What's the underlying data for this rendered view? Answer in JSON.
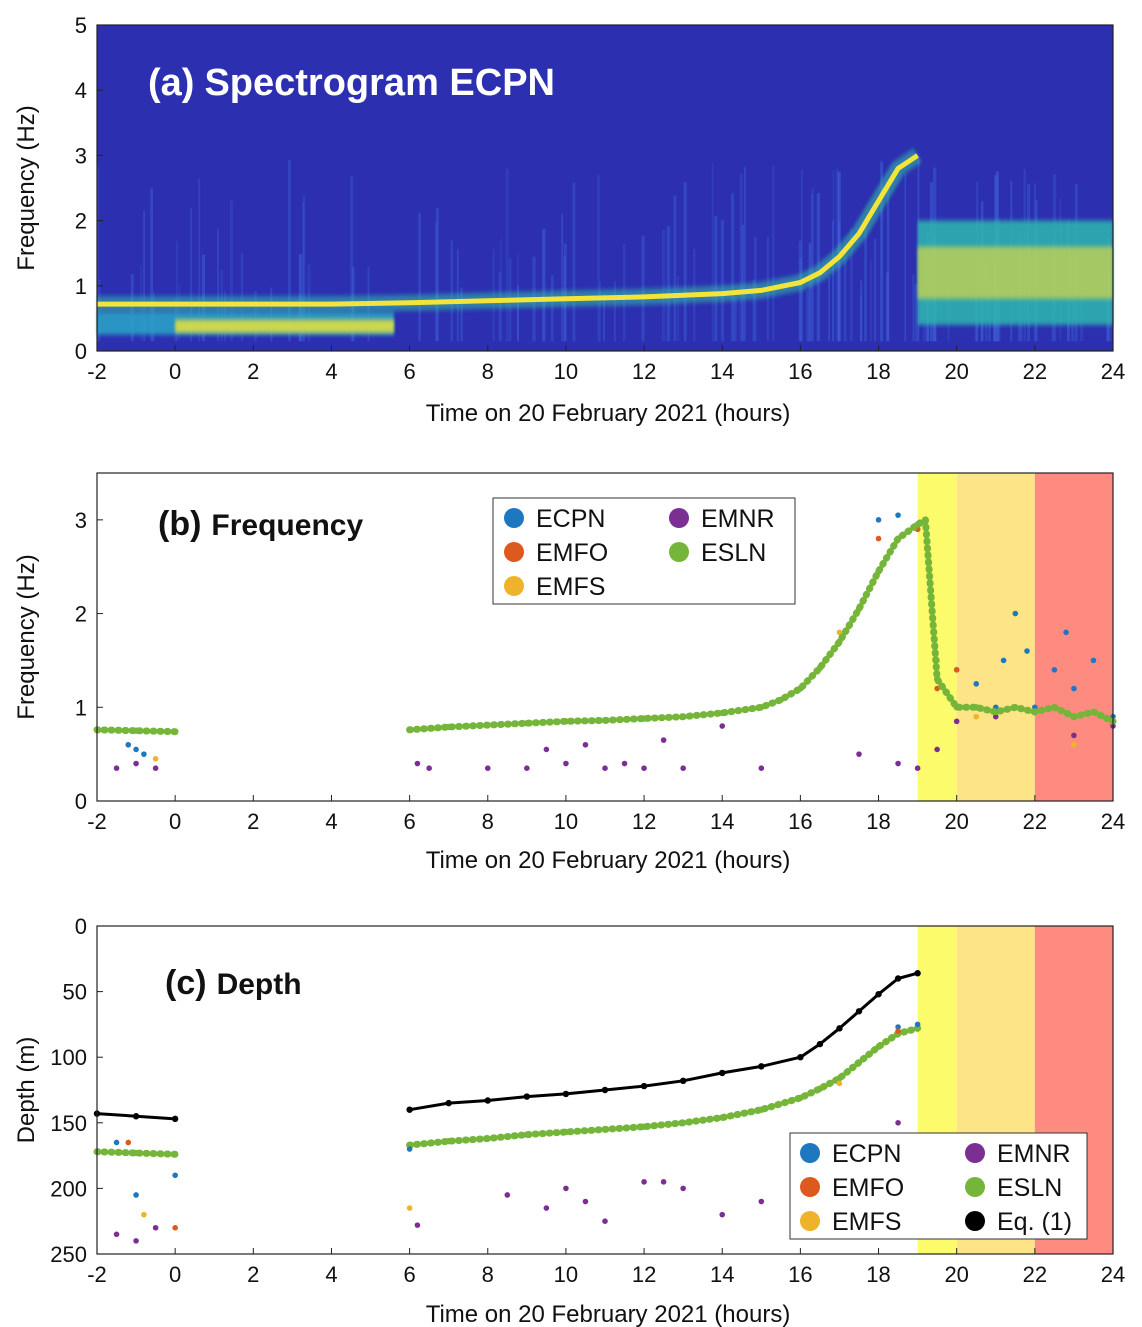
{
  "figure": {
    "time_ticks": [
      "-2",
      "0",
      "2",
      "4",
      "6",
      "8",
      "10",
      "12",
      "14",
      "16",
      "18",
      "20",
      "22",
      "24"
    ],
    "shading": [
      {
        "x0": 19,
        "x1": 20,
        "color": "#fbfb6b"
      },
      {
        "x0": 20,
        "x1": 22,
        "color": "#fde486"
      },
      {
        "x0": 22,
        "x1": 24,
        "color": "#fd8b80"
      }
    ],
    "station_colors": {
      "ECPN": "#1f77c0",
      "EMFO": "#dd5a1e",
      "EMFS": "#efb32b",
      "EMNR": "#7b2f93",
      "ESLN": "#74b53a",
      "Eq. (1)": "#000000"
    }
  },
  "chart_data": [
    {
      "type": "heatmap",
      "panel_tag": "(a)",
      "panel_title": "Spectrogram ECPN",
      "xlabel": "Time on 20 February 2021 (hours)",
      "ylabel": "Frequency (Hz)",
      "xlim": [
        -2,
        24
      ],
      "ylim": [
        0,
        5
      ],
      "yticks": [
        "0",
        "1",
        "2",
        "3",
        "4",
        "5"
      ],
      "colormap": "parula",
      "background_color": "#2b2fb0",
      "dominant_frequency_track": {
        "x": [
          -2,
          0,
          2,
          4,
          6,
          8,
          10,
          12,
          14,
          15,
          16,
          16.5,
          17,
          17.5,
          18,
          18.5,
          19
        ],
        "y": [
          0.72,
          0.72,
          0.72,
          0.72,
          0.74,
          0.77,
          0.8,
          0.83,
          0.88,
          0.93,
          1.05,
          1.2,
          1.45,
          1.8,
          2.3,
          2.8,
          3.0
        ]
      },
      "low_band": {
        "x": [
          -2,
          5.6
        ],
        "y": [
          0.25,
          0.6
        ]
      },
      "post_19h_band": {
        "x": [
          19,
          24
        ],
        "y": [
          0.4,
          2.0
        ]
      }
    },
    {
      "type": "scatter",
      "panel_tag": "(b)",
      "panel_title": "Frequency",
      "xlabel": "Time on 20 February 2021 (hours)",
      "ylabel": "Frequency (Hz)",
      "xlim": [
        -2,
        24
      ],
      "ylim": [
        0,
        3.5
      ],
      "yticks": [
        "0",
        "1",
        "2",
        "3"
      ],
      "legend": {
        "position": "top-center",
        "entries": [
          "ECPN",
          "EMNR",
          "EMFO",
          "ESLN",
          "EMFS"
        ]
      },
      "series": [
        {
          "name": "ECPN",
          "color": "#1f77c0",
          "x": [
            -1.2,
            -1.0,
            -0.8,
            18.0,
            18.5,
            19.0,
            19.5,
            20.0,
            20.5,
            21.0,
            21.2,
            21.5,
            21.8,
            22.0,
            22.5,
            22.8,
            23.0,
            23.5,
            24.0
          ],
          "y": [
            0.6,
            0.55,
            0.5,
            3.0,
            3.05,
            2.9,
            1.3,
            1.4,
            1.25,
            1.0,
            1.5,
            2.0,
            1.6,
            1.0,
            1.4,
            1.8,
            1.2,
            1.5,
            0.9
          ]
        },
        {
          "name": "EMFO",
          "color": "#dd5a1e",
          "x": [
            -1.0,
            17.0,
            18.0,
            19.0,
            19.5,
            20.0
          ],
          "y": [
            0.75,
            1.7,
            2.8,
            2.9,
            1.2,
            1.4
          ]
        },
        {
          "name": "EMFS",
          "color": "#efb32b",
          "x": [
            -0.5,
            17.0,
            19.5,
            20.5,
            23.0
          ],
          "y": [
            0.45,
            1.8,
            1.5,
            0.9,
            0.6
          ]
        },
        {
          "name": "EMNR",
          "color": "#7b2f93",
          "x": [
            -1.5,
            -1.0,
            -0.5,
            6.2,
            6.5,
            8.0,
            9.0,
            9.5,
            10.0,
            10.5,
            11.0,
            11.5,
            12.0,
            12.5,
            13.0,
            14.0,
            15.0,
            17.5,
            18.5,
            19.0,
            19.5,
            20.0,
            21.0,
            22.0,
            23.0,
            24.0
          ],
          "y": [
            0.35,
            0.4,
            0.35,
            0.4,
            0.35,
            0.35,
            0.35,
            0.55,
            0.4,
            0.6,
            0.35,
            0.4,
            0.35,
            0.65,
            0.35,
            0.8,
            0.35,
            0.5,
            0.4,
            0.35,
            0.55,
            0.85,
            0.9,
            0.95,
            0.7,
            0.8
          ]
        },
        {
          "name": "ESLN",
          "color": "#74b53a",
          "x": [
            -2.0,
            -1.0,
            0.0,
            6.0,
            7.0,
            8.0,
            9.0,
            10.0,
            11.0,
            12.0,
            13.0,
            14.0,
            15.0,
            15.5,
            16.0,
            16.5,
            17.0,
            17.5,
            18.0,
            18.5,
            19.0,
            19.2,
            19.5,
            20.0,
            20.5,
            21.0,
            21.5,
            22.0,
            22.5,
            23.0,
            23.5,
            24.0
          ],
          "y": [
            0.76,
            0.75,
            0.74,
            0.76,
            0.79,
            0.81,
            0.83,
            0.85,
            0.86,
            0.88,
            0.9,
            0.94,
            1.0,
            1.08,
            1.2,
            1.42,
            1.7,
            2.05,
            2.45,
            2.8,
            2.95,
            3.0,
            1.3,
            1.0,
            1.0,
            0.95,
            1.0,
            0.95,
            1.0,
            0.9,
            0.95,
            0.85
          ]
        }
      ]
    },
    {
      "type": "scatter",
      "panel_tag": "(c)",
      "panel_title": "Depth",
      "xlabel": "Time on 20 February 2021 (hours)",
      "ylabel": "Depth (m)",
      "xlim": [
        -2,
        24
      ],
      "ylim": [
        250,
        0
      ],
      "yticks": [
        "0",
        "50",
        "100",
        "150",
        "200",
        "250"
      ],
      "legend": {
        "position": "bottom-right",
        "entries": [
          "ECPN",
          "EMNR",
          "EMFO",
          "ESLN",
          "EMFS",
          "Eq. (1)"
        ]
      },
      "series": [
        {
          "name": "Eq. (1)",
          "color": "#000000",
          "x": [
            -2.0,
            -1.0,
            0.0,
            6.0,
            7.0,
            8.0,
            9.0,
            10.0,
            11.0,
            12.0,
            13.0,
            14.0,
            15.0,
            16.0,
            16.5,
            17.0,
            17.5,
            18.0,
            18.5,
            19.0
          ],
          "y": [
            143,
            145,
            147,
            140,
            135,
            133,
            130,
            128,
            125,
            122,
            118,
            112,
            107,
            100,
            90,
            78,
            65,
            52,
            40,
            36
          ]
        },
        {
          "name": "ESLN",
          "color": "#74b53a",
          "x": [
            -2.0,
            -1.0,
            0.0,
            6.0,
            7.0,
            8.0,
            9.0,
            10.0,
            11.0,
            12.0,
            13.0,
            14.0,
            15.0,
            16.0,
            16.5,
            17.0,
            17.5,
            18.0,
            18.5,
            19.0
          ],
          "y": [
            172,
            173,
            174,
            167,
            164,
            162,
            159,
            157,
            155,
            153,
            150,
            146,
            140,
            131,
            124,
            116,
            104,
            92,
            82,
            78
          ]
        },
        {
          "name": "EMNR",
          "color": "#7b2f93",
          "x": [
            -1.5,
            -1.0,
            -0.5,
            6.2,
            8.5,
            9.5,
            10.0,
            10.5,
            11.0,
            12.0,
            12.5,
            13.0,
            14.0,
            15.0,
            17.5,
            18.0,
            18.5
          ],
          "y": [
            235,
            240,
            230,
            228,
            205,
            215,
            200,
            210,
            225,
            195,
            195,
            200,
            220,
            210,
            160,
            185,
            150
          ]
        },
        {
          "name": "ECPN",
          "color": "#1f77c0",
          "x": [
            -1.5,
            -1.0,
            0.0,
            6.0,
            18.5,
            19.0
          ],
          "y": [
            165,
            205,
            190,
            170,
            77,
            75
          ]
        },
        {
          "name": "EMFO",
          "color": "#dd5a1e",
          "x": [
            -1.2,
            0.0,
            18.5
          ],
          "y": [
            165,
            230,
            80
          ]
        },
        {
          "name": "EMFS",
          "color": "#efb32b",
          "x": [
            -0.8,
            6.0,
            17.0
          ],
          "y": [
            220,
            215,
            120
          ]
        }
      ]
    }
  ]
}
